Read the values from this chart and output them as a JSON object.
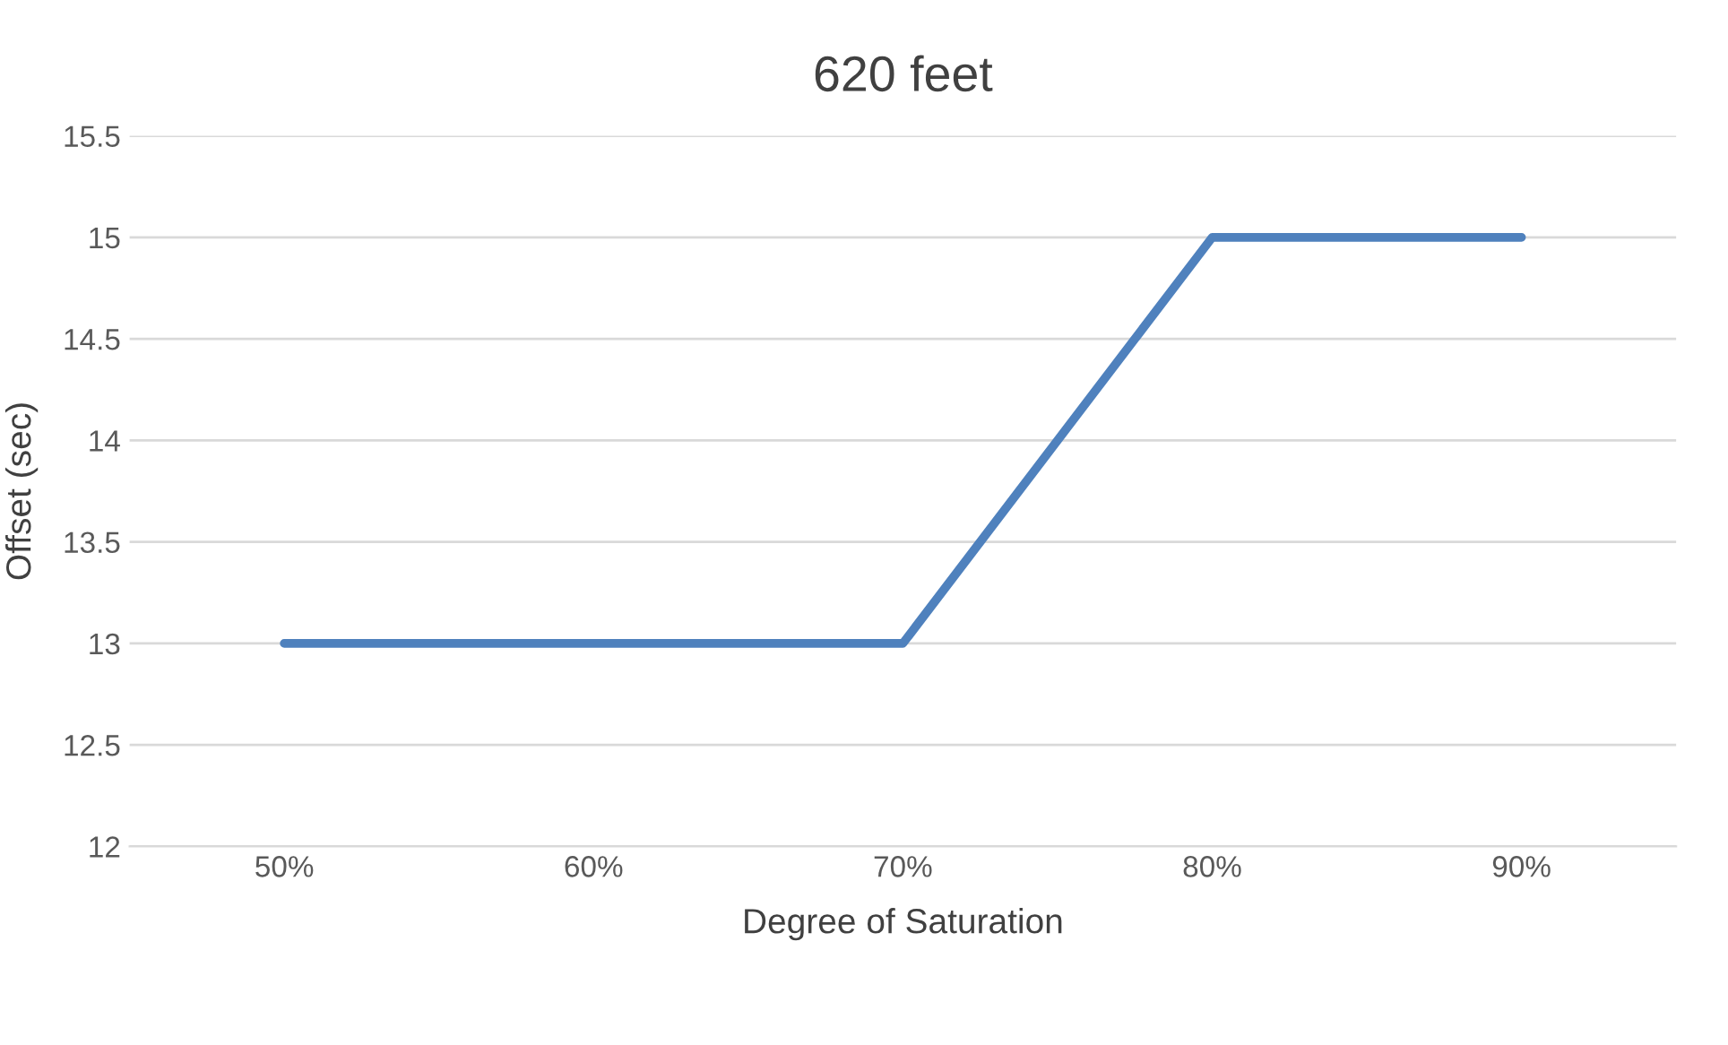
{
  "chart_data": {
    "type": "line",
    "title": "620 feet",
    "xlabel": "Degree of Saturation",
    "ylabel": "Offset (sec)",
    "categories": [
      "50%",
      "60%",
      "70%",
      "80%",
      "90%"
    ],
    "series": [
      {
        "color": "#4f81bd",
        "values": [
          13,
          13,
          13,
          15,
          15
        ]
      }
    ],
    "ylim": [
      12,
      15.5
    ],
    "yticks": [
      12,
      12.5,
      13,
      13.5,
      14,
      14.5,
      15,
      15.5
    ],
    "grid": "y",
    "legend": false,
    "marker": "none",
    "line_style": "solid"
  }
}
